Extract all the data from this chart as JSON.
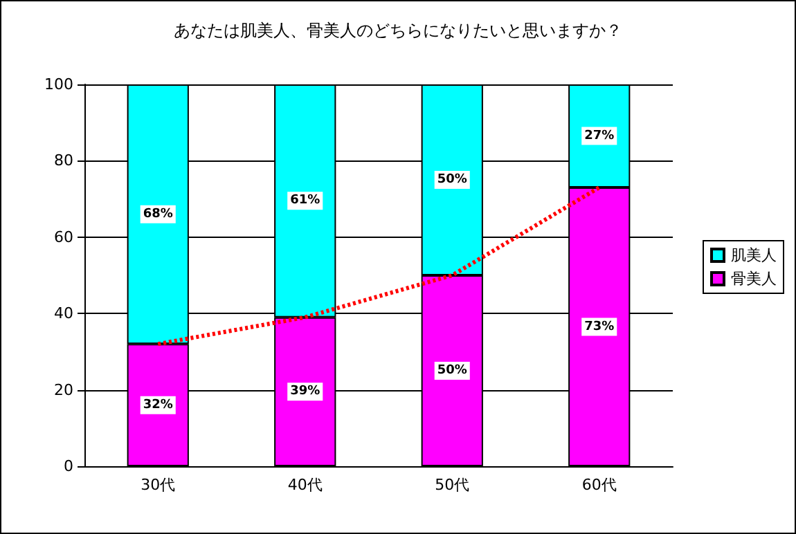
{
  "chart_data": {
    "type": "bar",
    "title": "あなたは肌美人、骨美人のどちらになりたいと思いますか？",
    "categories": [
      "30代",
      "40代",
      "50代",
      "60代"
    ],
    "stacked": true,
    "ylim": [
      0,
      100
    ],
    "yticks": [
      0,
      20,
      40,
      60,
      80,
      100
    ],
    "grid": "y",
    "legend": "right",
    "series": [
      {
        "name": "骨美人",
        "color": "#ff00ff",
        "values": [
          32,
          39,
          50,
          73
        ],
        "value_labels": [
          "32%",
          "39%",
          "50%",
          "73%"
        ]
      },
      {
        "name": "肌美人",
        "color": "#00ffff",
        "values": [
          68,
          61,
          50,
          27
        ],
        "value_labels": [
          "68%",
          "61%",
          "50%",
          "27%"
        ]
      },
      {
        "type": "line",
        "color": "#ff0000",
        "values": [
          32,
          39,
          50,
          73
        ],
        "line_style": "dotted",
        "marker": "none"
      }
    ]
  }
}
